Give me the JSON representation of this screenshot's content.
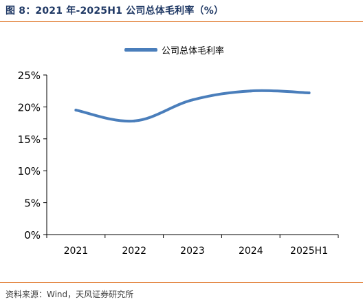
{
  "header": {
    "title": "图 8：2021 年-2025H1 公司总体毛利率（%）"
  },
  "footer": {
    "source": "资料来源：Wind，天风证券研究所"
  },
  "colors": {
    "line": "#4a7ebb",
    "accent_rule": "#e07a2e",
    "title": "#1f3864"
  },
  "chart_data": {
    "type": "line",
    "title": "",
    "xlabel": "",
    "ylabel": "",
    "categories": [
      "2021",
      "2022",
      "2023",
      "2024",
      "2025H1"
    ],
    "series": [
      {
        "name": "公司总体毛利率",
        "values": [
          19.5,
          17.8,
          21.1,
          22.5,
          22.2
        ]
      }
    ],
    "ylim": [
      0,
      25
    ],
    "yticks": [
      0,
      5,
      10,
      15,
      20,
      25
    ],
    "ytick_labels": [
      "0%",
      "5%",
      "10%",
      "15%",
      "20%",
      "25%"
    ],
    "grid": false,
    "legend": "top-center"
  }
}
